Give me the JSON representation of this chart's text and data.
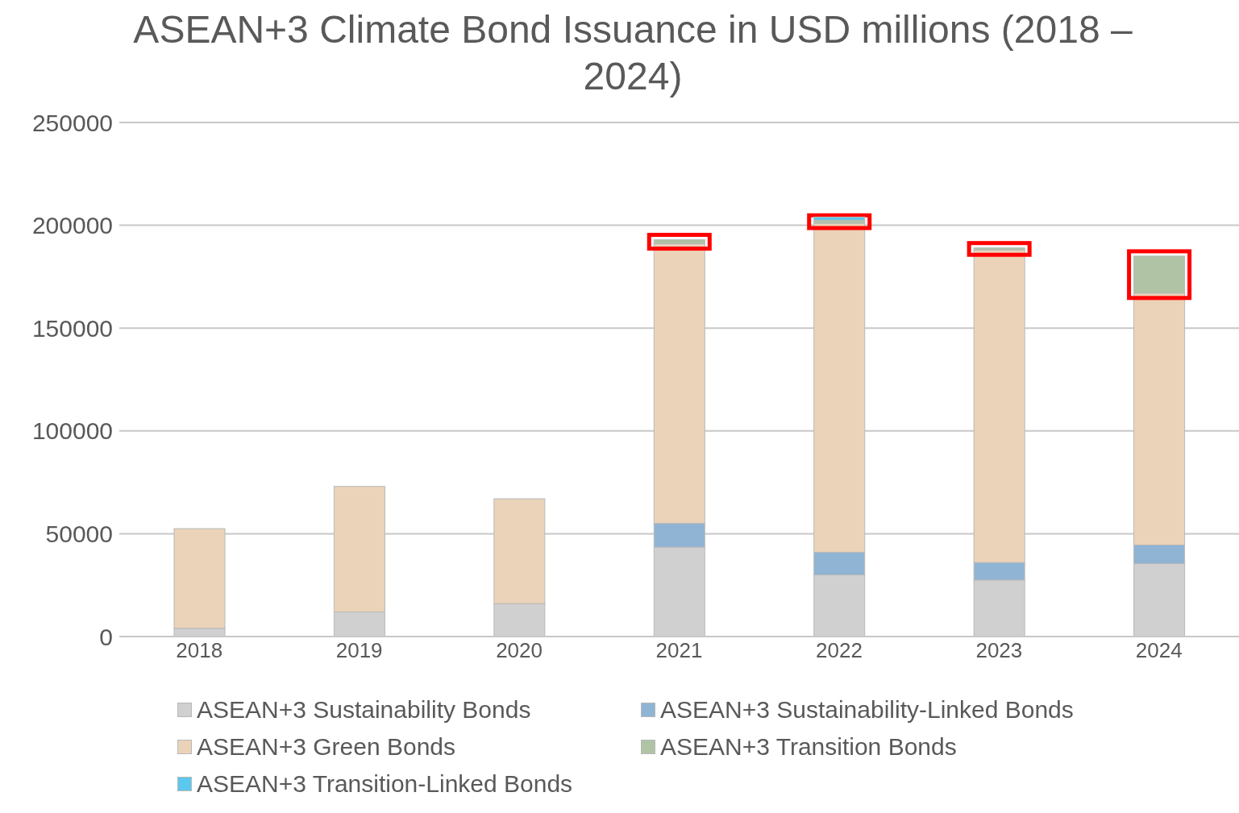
{
  "chart_data": {
    "type": "bar",
    "title": "ASEAN+3 Climate Bond Issuance in USD millions (2018 – 2024)",
    "categories": [
      "2018",
      "2019",
      "2020",
      "2021",
      "2022",
      "2023",
      "2024"
    ],
    "stacked": true,
    "series": [
      {
        "name": "ASEAN+3 Sustainability Bonds",
        "color": "#d0d0d0",
        "values": [
          4000,
          12000,
          16000,
          43500,
          30000,
          27500,
          35500
        ]
      },
      {
        "name": "ASEAN+3 Sustainability-Linked Bonds",
        "color": "#8fb4d4",
        "values": [
          0,
          0,
          0,
          11500,
          11000,
          8500,
          9000
        ]
      },
      {
        "name": "ASEAN+3 Green Bonds",
        "color": "#ebd3b9",
        "values": [
          48500,
          61000,
          51000,
          136000,
          160000,
          152000,
          122500
        ]
      },
      {
        "name": "ASEAN+3 Transition Bonds",
        "color": "#b0c4a5",
        "values": [
          0,
          0,
          0,
          2000,
          1500,
          1000,
          18000
        ]
      },
      {
        "name": "ASEAN+3 Transition-Linked Bonds",
        "color": "#5bc8ee",
        "values": [
          0,
          0,
          0,
          0,
          1500,
          0,
          0
        ]
      }
    ],
    "ylim": [
      0,
      250000
    ],
    "yticks": [
      0,
      50000,
      100000,
      150000,
      200000,
      250000
    ],
    "grid": "y",
    "legend": "bottom"
  }
}
